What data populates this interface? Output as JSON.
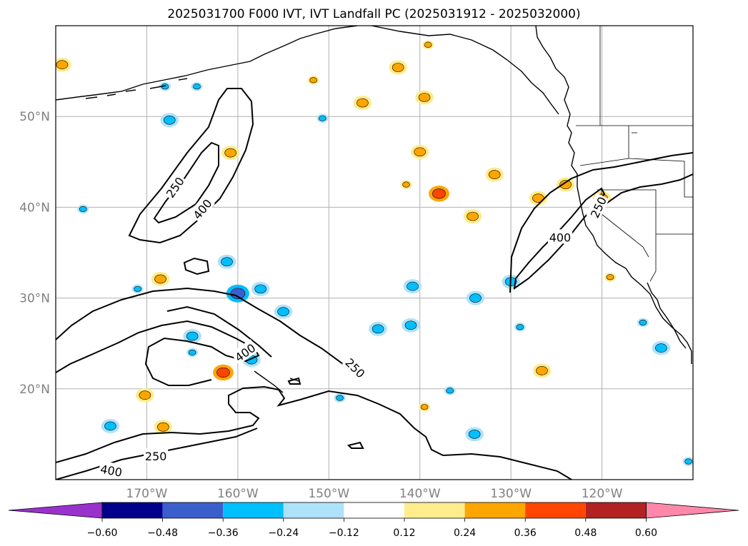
{
  "title": "2025031700 F000 IVT, IVT Landfall PC (2025031912 - 2025032000)",
  "chart_data": {
    "type": "contour-map",
    "projection": "lat-lon",
    "lon_range": [
      -180,
      -110
    ],
    "lat_range": [
      10,
      60
    ],
    "lon_ticks": [
      {
        "value": -170,
        "label": "170°W"
      },
      {
        "value": -160,
        "label": "160°W"
      },
      {
        "value": -150,
        "label": "150°W"
      },
      {
        "value": -140,
        "label": "140°W"
      },
      {
        "value": -130,
        "label": "130°W"
      },
      {
        "value": -120,
        "label": "120°W"
      }
    ],
    "lat_ticks": [
      {
        "value": 20,
        "label": "20°N"
      },
      {
        "value": 30,
        "label": "30°N"
      },
      {
        "value": 40,
        "label": "40°N"
      },
      {
        "value": 50,
        "label": "50°N"
      }
    ],
    "grid": true,
    "ivt_contours": {
      "levels": [
        250,
        400
      ],
      "labels": [
        {
          "text": "250",
          "lon": -166.9,
          "lat": 42.2,
          "rot": -55
        },
        {
          "text": "400",
          "lon": -163.9,
          "lat": 39.8,
          "rot": -50
        },
        {
          "text": "400",
          "lon": -159.2,
          "lat": 24.0,
          "rot": -35
        },
        {
          "text": "250",
          "lon": -147.1,
          "lat": 22.3,
          "rot": 45
        },
        {
          "text": "250",
          "lon": -169.0,
          "lat": 12.6,
          "rot": 0
        },
        {
          "text": "400",
          "lon": -173.9,
          "lat": 11.0,
          "rot": 10
        },
        {
          "text": "400",
          "lon": -124.6,
          "lat": 36.7,
          "rot": 0
        },
        {
          "text": "250",
          "lon": -120.4,
          "lat": 40.0,
          "rot": -65
        }
      ]
    },
    "colorbar": {
      "ticks": [
        "−0.60",
        "−0.48",
        "−0.36",
        "−0.24",
        "−0.12",
        "0.12",
        "0.24",
        "0.36",
        "0.48",
        "0.60"
      ],
      "under_color": "#9932cc",
      "over_color": "#ff88aa",
      "colors": [
        "#00008b",
        "#3a5fcd",
        "#00bfff",
        "#aee2fa",
        "#ffffff",
        "#ffec8b",
        "#ffa500",
        "#ff4500",
        "#b22222"
      ]
    },
    "pc_features": [
      {
        "lon": -179.3,
        "lat": 55.7,
        "kind": "pos2"
      },
      {
        "lon": -167.5,
        "lat": 49.6,
        "kind": "neg2"
      },
      {
        "lon": -168.0,
        "lat": 53.3,
        "kind": "neg1"
      },
      {
        "lon": -164.5,
        "lat": 53.3,
        "kind": "neg1"
      },
      {
        "lon": -165.0,
        "lat": 25.8,
        "kind": "neg2"
      },
      {
        "lon": -165.0,
        "lat": 24.0,
        "kind": "neg1"
      },
      {
        "lon": -168.5,
        "lat": 32.1,
        "kind": "pos2"
      },
      {
        "lon": -170.2,
        "lat": 19.3,
        "kind": "pos2"
      },
      {
        "lon": -174.0,
        "lat": 15.9,
        "kind": "neg2"
      },
      {
        "lon": -168.2,
        "lat": 15.8,
        "kind": "pos2"
      },
      {
        "lon": -171.0,
        "lat": 31.0,
        "kind": "neg1"
      },
      {
        "lon": -177.0,
        "lat": 39.8,
        "kind": "neg1"
      },
      {
        "lon": -160.8,
        "lat": 46.0,
        "kind": "pos2"
      },
      {
        "lon": -161.6,
        "lat": 21.8,
        "kind": "pos3"
      },
      {
        "lon": -161.2,
        "lat": 34.0,
        "kind": "neg2"
      },
      {
        "lon": -160.0,
        "lat": 30.5,
        "kind": "neg3"
      },
      {
        "lon": -157.5,
        "lat": 31.0,
        "kind": "neg2"
      },
      {
        "lon": -155.0,
        "lat": 28.5,
        "kind": "neg2"
      },
      {
        "lon": -158.5,
        "lat": 23.2,
        "kind": "neg2"
      },
      {
        "lon": -151.7,
        "lat": 54.0,
        "kind": "pos1"
      },
      {
        "lon": -150.7,
        "lat": 49.8,
        "kind": "neg1"
      },
      {
        "lon": -146.3,
        "lat": 51.5,
        "kind": "pos2"
      },
      {
        "lon": -144.6,
        "lat": 26.6,
        "kind": "neg2"
      },
      {
        "lon": -142.4,
        "lat": 55.4,
        "kind": "pos2"
      },
      {
        "lon": -139.5,
        "lat": 52.1,
        "kind": "pos2"
      },
      {
        "lon": -139.1,
        "lat": 57.9,
        "kind": "pos1"
      },
      {
        "lon": -140.0,
        "lat": 46.1,
        "kind": "pos2"
      },
      {
        "lon": -141.5,
        "lat": 42.5,
        "kind": "pos1"
      },
      {
        "lon": -137.9,
        "lat": 41.5,
        "kind": "pos3"
      },
      {
        "lon": -140.8,
        "lat": 31.3,
        "kind": "neg2"
      },
      {
        "lon": -141.0,
        "lat": 27.0,
        "kind": "neg2"
      },
      {
        "lon": -134.2,
        "lat": 39.0,
        "kind": "pos2"
      },
      {
        "lon": -133.9,
        "lat": 30.0,
        "kind": "neg2"
      },
      {
        "lon": -131.8,
        "lat": 43.6,
        "kind": "pos2"
      },
      {
        "lon": -130.0,
        "lat": 31.8,
        "kind": "neg2"
      },
      {
        "lon": -129.0,
        "lat": 26.8,
        "kind": "neg1"
      },
      {
        "lon": -127.0,
        "lat": 41.0,
        "kind": "pos2"
      },
      {
        "lon": -126.6,
        "lat": 22.0,
        "kind": "pos2"
      },
      {
        "lon": -134.0,
        "lat": 15.0,
        "kind": "neg2"
      },
      {
        "lon": -136.7,
        "lat": 19.8,
        "kind": "neg1"
      },
      {
        "lon": -148.8,
        "lat": 19.0,
        "kind": "neg1"
      },
      {
        "lon": -139.5,
        "lat": 18.0,
        "kind": "pos1"
      },
      {
        "lon": -124.0,
        "lat": 42.5,
        "kind": "pos2"
      },
      {
        "lon": -120.0,
        "lat": 41.0,
        "kind": "pos2"
      },
      {
        "lon": -119.1,
        "lat": 32.3,
        "kind": "pos1"
      },
      {
        "lon": -113.5,
        "lat": 24.5,
        "kind": "neg2"
      },
      {
        "lon": -115.5,
        "lat": 27.3,
        "kind": "neg1"
      },
      {
        "lon": -110.5,
        "lat": 12.0,
        "kind": "neg1"
      }
    ]
  }
}
